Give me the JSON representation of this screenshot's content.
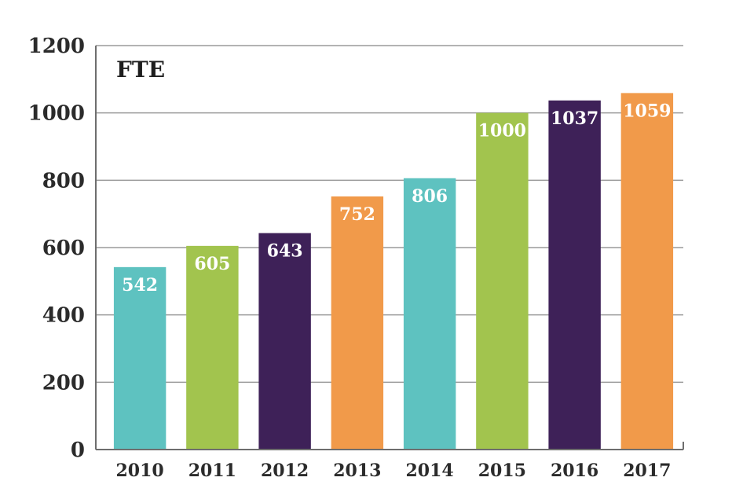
{
  "chart_data": {
    "type": "bar",
    "title": "FTE",
    "categories": [
      "2010",
      "2011",
      "2012",
      "2013",
      "2014",
      "2015",
      "2016",
      "2017"
    ],
    "values": [
      542,
      605,
      643,
      752,
      806,
      1000,
      1037,
      1059
    ],
    "data_labels": [
      "542",
      "605",
      "643",
      "752",
      "806",
      "1000",
      "1037",
      "1059"
    ],
    "colors": [
      "#5ec2c0",
      "#a2c44e",
      "#3e2158",
      "#f19a4a",
      "#5ec2c0",
      "#a2c44e",
      "#3e2158",
      "#f19a4a"
    ],
    "ylim": [
      0,
      1200
    ],
    "yticks": [
      0,
      200,
      400,
      600,
      800,
      1000,
      1200
    ],
    "ytick_labels": [
      "0",
      "200",
      "400",
      "600",
      "800",
      "1000",
      "1200"
    ],
    "grid": true,
    "xlabel": "",
    "ylabel": ""
  }
}
